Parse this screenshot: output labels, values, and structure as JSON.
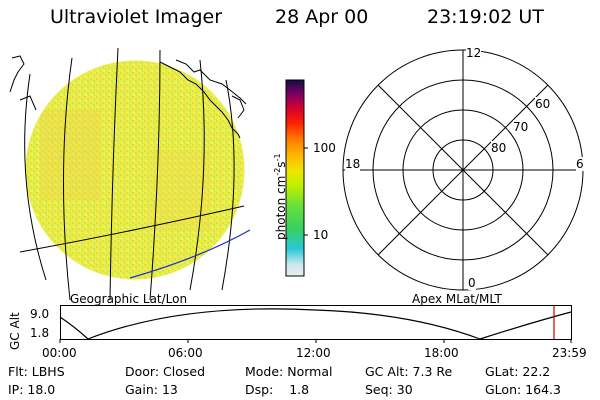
{
  "header": {
    "instrument": "Ultraviolet Imager",
    "date": "28 Apr 00",
    "time": "23:19:02 UT"
  },
  "image_panel": {
    "label": "Geographic Lat/Lon",
    "fill_color": "#e8ee44",
    "outline_color": "#1a2bd6"
  },
  "color_bar": {
    "unit": "photon cm",
    "unit_exp1": "-2",
    "unit_mid": "s",
    "unit_exp2": "-1",
    "tick_labels": [
      "100",
      "10"
    ],
    "stops": [
      "#d8d8d8",
      "#7adada",
      "#28c8d8",
      "#40d070",
      "#60e040",
      "#c8f000",
      "#f0e000",
      "#ffb000",
      "#ff7000",
      "#ff2000",
      "#d00030",
      "#a00060",
      "#500070",
      "#101040"
    ]
  },
  "polar_plot": {
    "label": "Apex MLat/MLT",
    "mlt_labels": {
      "top": "12",
      "left": "18",
      "right": "6",
      "bottom": "0"
    },
    "lat_labels": [
      "60",
      "70",
      "80"
    ]
  },
  "orbit_plot": {
    "ylabel": "GC Alt",
    "y_ticks": [
      "9.0",
      "1.8"
    ],
    "x_ticks": [
      "00:00",
      "06:00",
      "12:00",
      "18:00",
      "23:59"
    ],
    "marker_color": "#cc0000"
  },
  "status": {
    "row1": [
      {
        "label": "Flt:",
        "value": "LBHS"
      },
      {
        "label": "Door:",
        "value": "Closed"
      },
      {
        "label": "Mode:",
        "value": "Normal"
      },
      {
        "label": "GC Alt:",
        "value": "7.3 Re"
      },
      {
        "label": "GLat:",
        "value": "22.2"
      }
    ],
    "row2": [
      {
        "label": "IP:",
        "value": "18.0"
      },
      {
        "label": "Gain:",
        "value": "13"
      },
      {
        "label": "Dsp:",
        "value": "1.8"
      },
      {
        "label": "Seq:",
        "value": "30"
      },
      {
        "label": "GLon:",
        "value": "164.3"
      }
    ]
  }
}
